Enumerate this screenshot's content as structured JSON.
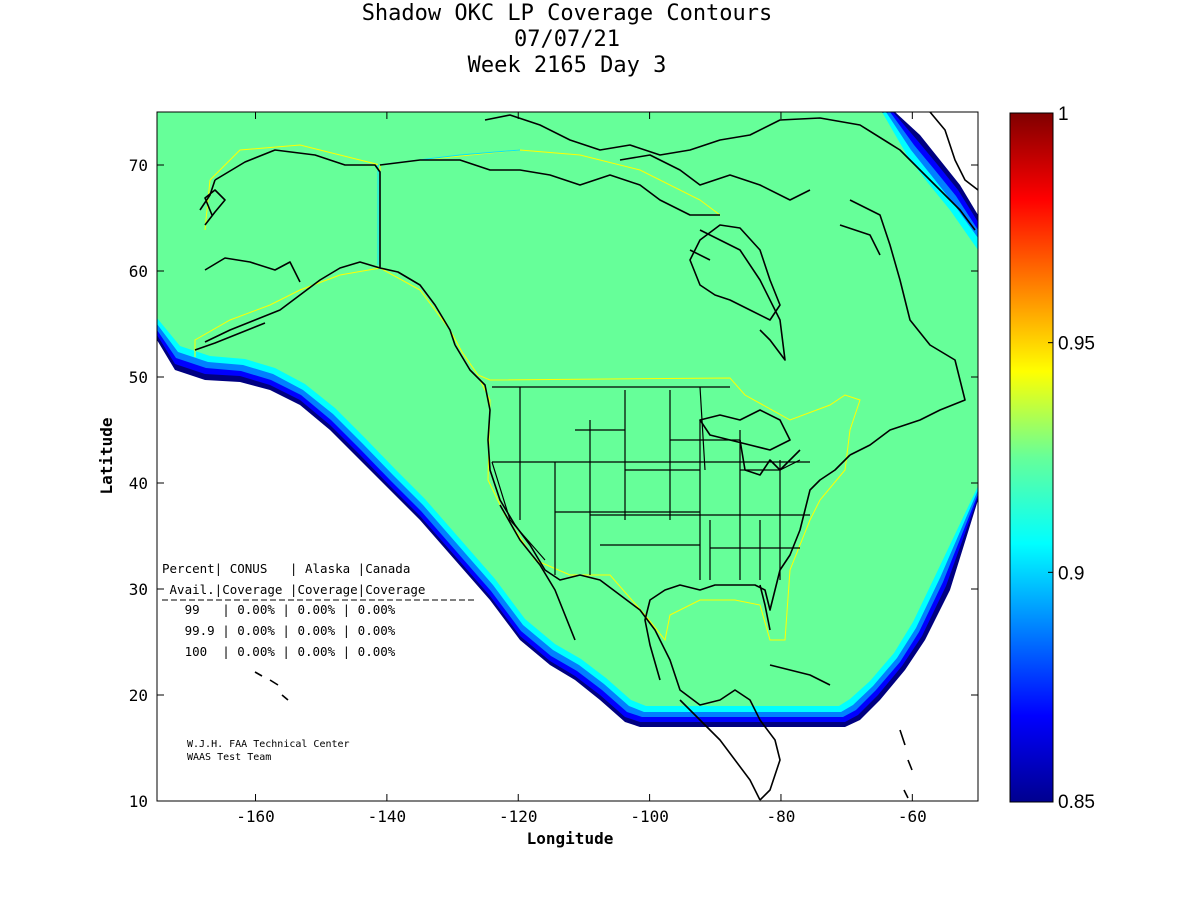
{
  "title": {
    "line1": "Shadow OKC LP Coverage Contours",
    "line2": "07/07/21",
    "line3": "Week 2165 Day 3"
  },
  "axes": {
    "xlabel": "Longitude",
    "ylabel": "Latitude",
    "xlim": [
      -175,
      -50
    ],
    "ylim": [
      10,
      75
    ],
    "xticks": [
      -160,
      -140,
      -120,
      -100,
      -80,
      -60
    ],
    "yticks": [
      10,
      20,
      30,
      40,
      50,
      60,
      70
    ]
  },
  "colorbar": {
    "range": [
      0.85,
      1
    ],
    "ticks": [
      "0.85",
      "0.9",
      "0.95",
      "1"
    ],
    "colormap": "jet"
  },
  "colors": {
    "coverage_fill": "#66ff99",
    "region_outline": "#ffff00",
    "edge_gradient": [
      "#00ffff",
      "#0080ff",
      "#0000ff",
      "#000080"
    ]
  },
  "table": {
    "header1": "Percent| CONUS   | Alaska |Canada",
    "header2": " Avail.|Coverage |Coverage|Coverage",
    "rows": [
      "   99   | 0.00% | 0.00% | 0.00%",
      "   99.9 | 0.00% | 0.00% | 0.00%",
      "   100  | 0.00% | 0.00% | 0.00%"
    ]
  },
  "credit": {
    "line1": "W.J.H. FAA Technical Center",
    "line2": "WAAS Test Team"
  }
}
